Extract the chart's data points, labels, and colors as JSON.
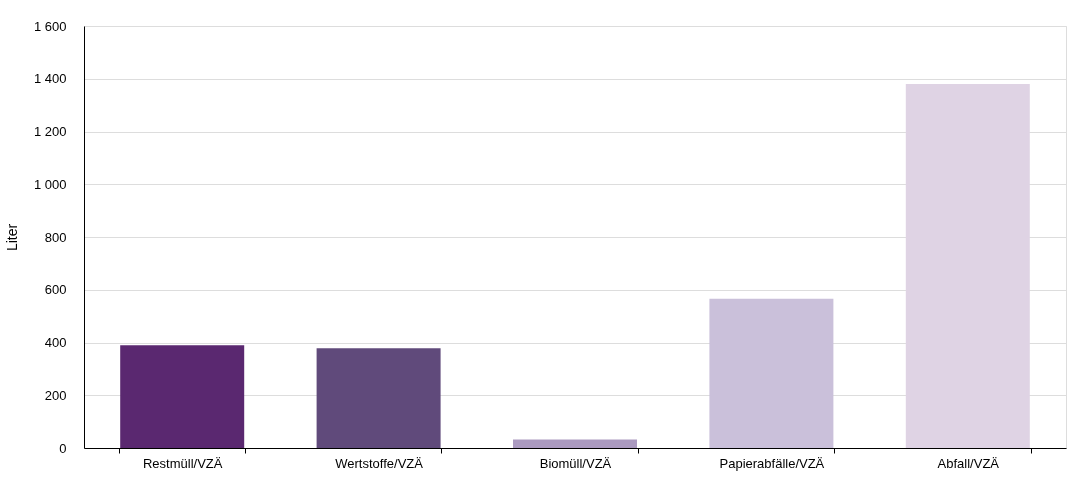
{
  "chart_data": {
    "type": "bar",
    "ylabel": "Liter",
    "categories": [
      "Restmüll/VZÄ",
      "Wertstoffe/VZÄ",
      "Biomüll/VZÄ",
      "Papierabfälle/VZÄ",
      "Abfall/VZÄ"
    ],
    "values": [
      390,
      378,
      32,
      566,
      1380
    ],
    "colors": [
      "#5a2870",
      "#604a7b",
      "#ab9ac0",
      "#cac0da",
      "#dfd3e4"
    ],
    "ylim": [
      0,
      1600
    ],
    "yticks": [
      0,
      200,
      400,
      600,
      800,
      {
        "value": 1000,
        "label": "1 000"
      },
      {
        "value": 1200,
        "label": "1 200"
      },
      {
        "value": 1400,
        "label": "1 400"
      },
      {
        "value": 1600,
        "label": "1 600"
      }
    ],
    "grid": "y",
    "legend": false
  }
}
